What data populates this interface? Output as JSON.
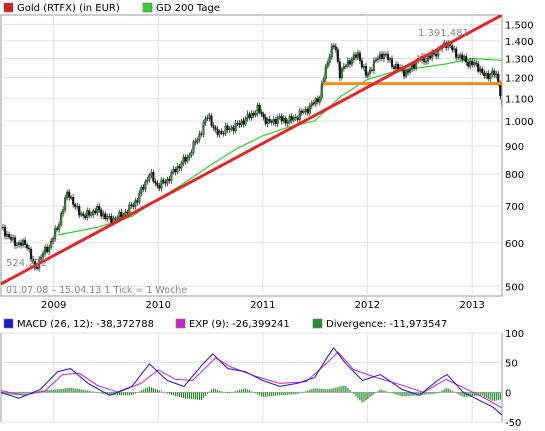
{
  "chart_data": [
    {
      "type": "line",
      "legend": [
        {
          "name": "Gold (RTFX) (in EUR)",
          "color": "#d42020"
        },
        {
          "name": "GD 200 Tage",
          "color": "#33cc33"
        }
      ],
      "y_scale": "log",
      "ylim": [
        480,
        1560
      ],
      "y_ticks": [
        500,
        600,
        700,
        800,
        900,
        1000,
        1100,
        1200,
        1300,
        1400,
        1500
      ],
      "y_tick_labels": [
        "500",
        "600",
        "700",
        "800",
        "900",
        "1.000",
        "1.100",
        "1.200",
        "1.300",
        "1.400",
        "1.500"
      ],
      "x_range": [
        "2008-07-01",
        "2013-04-15"
      ],
      "x_ticks": [
        "2009-01-01",
        "2010-01-01",
        "2011-01-01",
        "2012-01-01",
        "2013-01-01"
      ],
      "x_tick_labels": [
        "2009",
        "2010",
        "2011",
        "2012",
        "2013"
      ],
      "annotations": {
        "max_label": "1.391,481",
        "min_label": "524,272",
        "period_text": "01.07.08 – 15.04.13   1 Tick = 1 Woche"
      },
      "price": [
        [
          "2008-07-01",
          640
        ],
        [
          "2008-08-15",
          600
        ],
        [
          "2008-10-01",
          595
        ],
        [
          "2008-10-27",
          535
        ],
        [
          "2008-11-15",
          565
        ],
        [
          "2008-12-15",
          590
        ],
        [
          "2009-01-15",
          640
        ],
        [
          "2009-02-20",
          745
        ],
        [
          "2009-03-20",
          690
        ],
        [
          "2009-04-20",
          670
        ],
        [
          "2009-06-01",
          690
        ],
        [
          "2009-07-15",
          660
        ],
        [
          "2009-08-20",
          670
        ],
        [
          "2009-09-20",
          690
        ],
        [
          "2009-10-20",
          720
        ],
        [
          "2009-12-01",
          800
        ],
        [
          "2010-01-01",
          760
        ],
        [
          "2010-02-01",
          780
        ],
        [
          "2010-03-01",
          815
        ],
        [
          "2010-04-15",
          860
        ],
        [
          "2010-06-01",
          960
        ],
        [
          "2010-06-25",
          1030
        ],
        [
          "2010-07-20",
          950
        ],
        [
          "2010-08-20",
          960
        ],
        [
          "2010-10-01",
          980
        ],
        [
          "2010-11-15",
          1020
        ],
        [
          "2010-12-15",
          1050
        ],
        [
          "2011-01-20",
          990
        ],
        [
          "2011-02-20",
          1010
        ],
        [
          "2011-04-01",
          1000
        ],
        [
          "2011-05-01",
          1020
        ],
        [
          "2011-06-15",
          1060
        ],
        [
          "2011-07-20",
          1110
        ],
        [
          "2011-08-08",
          1240
        ],
        [
          "2011-08-25",
          1340
        ],
        [
          "2011-09-10",
          1375
        ],
        [
          "2011-09-26",
          1220
        ],
        [
          "2011-11-01",
          1290
        ],
        [
          "2011-12-01",
          1320
        ],
        [
          "2011-12-30",
          1200
        ],
        [
          "2012-01-20",
          1270
        ],
        [
          "2012-02-25",
          1330
        ],
        [
          "2012-04-01",
          1260
        ],
        [
          "2012-05-20",
          1220
        ],
        [
          "2012-06-20",
          1290
        ],
        [
          "2012-08-01",
          1300
        ],
        [
          "2012-09-15",
          1360
        ],
        [
          "2012-10-05",
          1391.481
        ],
        [
          "2012-11-01",
          1330
        ],
        [
          "2012-12-15",
          1280
        ],
        [
          "2013-01-20",
          1260
        ],
        [
          "2013-02-15",
          1200
        ],
        [
          "2013-03-15",
          1230
        ],
        [
          "2013-04-05",
          1170
        ],
        [
          "2013-04-15",
          1060
        ]
      ],
      "gd200": [
        [
          "2009-01-15",
          620
        ],
        [
          "2009-06-01",
          640
        ],
        [
          "2009-10-01",
          670
        ],
        [
          "2010-01-01",
          720
        ],
        [
          "2010-04-01",
          770
        ],
        [
          "2010-07-01",
          830
        ],
        [
          "2010-10-01",
          890
        ],
        [
          "2011-01-01",
          940
        ],
        [
          "2011-04-01",
          975
        ],
        [
          "2011-07-01",
          1000
        ],
        [
          "2011-10-01",
          1110
        ],
        [
          "2012-01-01",
          1190
        ],
        [
          "2012-04-01",
          1230
        ],
        [
          "2012-07-01",
          1250
        ],
        [
          "2012-10-01",
          1270
        ],
        [
          "2013-01-01",
          1300
        ],
        [
          "2013-04-15",
          1290
        ]
      ],
      "trend_red": [
        [
          "2008-07-01",
          505
        ],
        [
          "2013-04-15",
          1560
        ]
      ],
      "trend_orange": [
        [
          "2011-08-01",
          1170
        ],
        [
          "2013-04-15",
          1170
        ]
      ]
    },
    {
      "type": "line",
      "legend": [
        {
          "name": "MACD (26, 12): -38,372788",
          "color": "#1a1acc"
        },
        {
          "name": "EXP (9): -26,399241",
          "color": "#cc22cc"
        },
        {
          "name": "Divergence: -11,973547",
          "color": "#2a8a2a"
        }
      ],
      "ylim": [
        -50,
        100
      ],
      "y_ticks": [
        -50,
        0,
        50,
        100
      ],
      "y_tick_labels": [
        "-50",
        "0",
        "50",
        "100"
      ],
      "macd": [
        [
          "2008-07-01",
          0
        ],
        [
          "2008-09-01",
          -10
        ],
        [
          "2008-11-15",
          5
        ],
        [
          "2009-01-15",
          35
        ],
        [
          "2009-03-01",
          40
        ],
        [
          "2009-05-01",
          15
        ],
        [
          "2009-07-15",
          -5
        ],
        [
          "2009-10-01",
          10
        ],
        [
          "2009-12-01",
          48
        ],
        [
          "2010-02-01",
          20
        ],
        [
          "2010-04-01",
          10
        ],
        [
          "2010-06-01",
          45
        ],
        [
          "2010-07-10",
          65
        ],
        [
          "2010-09-01",
          40
        ],
        [
          "2010-11-01",
          35
        ],
        [
          "2011-01-01",
          20
        ],
        [
          "2011-03-01",
          10
        ],
        [
          "2011-05-01",
          15
        ],
        [
          "2011-07-01",
          25
        ],
        [
          "2011-08-15",
          60
        ],
        [
          "2011-09-05",
          75
        ],
        [
          "2011-10-15",
          50
        ],
        [
          "2011-12-15",
          20
        ],
        [
          "2012-02-15",
          30
        ],
        [
          "2012-05-01",
          5
        ],
        [
          "2012-07-01",
          -5
        ],
        [
          "2012-09-01",
          20
        ],
        [
          "2012-10-05",
          30
        ],
        [
          "2012-12-01",
          0
        ],
        [
          "2013-02-01",
          -15
        ],
        [
          "2013-03-15",
          -25
        ],
        [
          "2013-04-15",
          -38.37
        ]
      ],
      "exp": [
        [
          "2008-07-01",
          3
        ],
        [
          "2008-09-15",
          -5
        ],
        [
          "2008-12-01",
          2
        ],
        [
          "2009-02-01",
          30
        ],
        [
          "2009-04-01",
          32
        ],
        [
          "2009-06-01",
          12
        ],
        [
          "2009-08-15",
          0
        ],
        [
          "2009-11-01",
          15
        ],
        [
          "2010-01-01",
          38
        ],
        [
          "2010-03-01",
          22
        ],
        [
          "2010-05-01",
          20
        ],
        [
          "2010-07-20",
          58
        ],
        [
          "2010-09-15",
          42
        ],
        [
          "2010-12-01",
          28
        ],
        [
          "2011-03-01",
          15
        ],
        [
          "2011-06-01",
          18
        ],
        [
          "2011-08-25",
          55
        ],
        [
          "2011-09-20",
          68
        ],
        [
          "2011-11-15",
          38
        ],
        [
          "2012-02-01",
          25
        ],
        [
          "2012-05-01",
          12
        ],
        [
          "2012-07-15",
          0
        ],
        [
          "2012-10-01",
          22
        ],
        [
          "2012-12-01",
          8
        ],
        [
          "2013-02-15",
          -10
        ],
        [
          "2013-04-15",
          -26.4
        ]
      ],
      "divergence": [
        [
          "2008-07-01",
          -3
        ],
        [
          "2008-09-01",
          -5
        ],
        [
          "2008-11-15",
          3
        ],
        [
          "2009-01-15",
          5
        ],
        [
          "2009-03-01",
          8
        ],
        [
          "2009-05-01",
          3
        ],
        [
          "2009-07-15",
          -5
        ],
        [
          "2009-10-01",
          -5
        ],
        [
          "2009-12-01",
          10
        ],
        [
          "2010-02-01",
          -2
        ],
        [
          "2010-04-01",
          -10
        ],
        [
          "2010-06-01",
          -13
        ],
        [
          "2010-07-10",
          7
        ],
        [
          "2010-09-01",
          -2
        ],
        [
          "2010-11-01",
          7
        ],
        [
          "2011-01-01",
          -8
        ],
        [
          "2011-03-01",
          -5
        ],
        [
          "2011-05-01",
          -3
        ],
        [
          "2011-07-01",
          7
        ],
        [
          "2011-08-15",
          5
        ],
        [
          "2011-09-05",
          7
        ],
        [
          "2011-10-15",
          12
        ],
        [
          "2011-12-15",
          -18
        ],
        [
          "2012-02-15",
          5
        ],
        [
          "2012-05-01",
          -7
        ],
        [
          "2012-07-01",
          -5
        ],
        [
          "2012-09-01",
          -2
        ],
        [
          "2012-10-05",
          8
        ],
        [
          "2012-12-01",
          -8
        ],
        [
          "2013-02-01",
          -5
        ],
        [
          "2013-03-15",
          -15
        ],
        [
          "2013-04-15",
          -11.97
        ]
      ]
    }
  ]
}
